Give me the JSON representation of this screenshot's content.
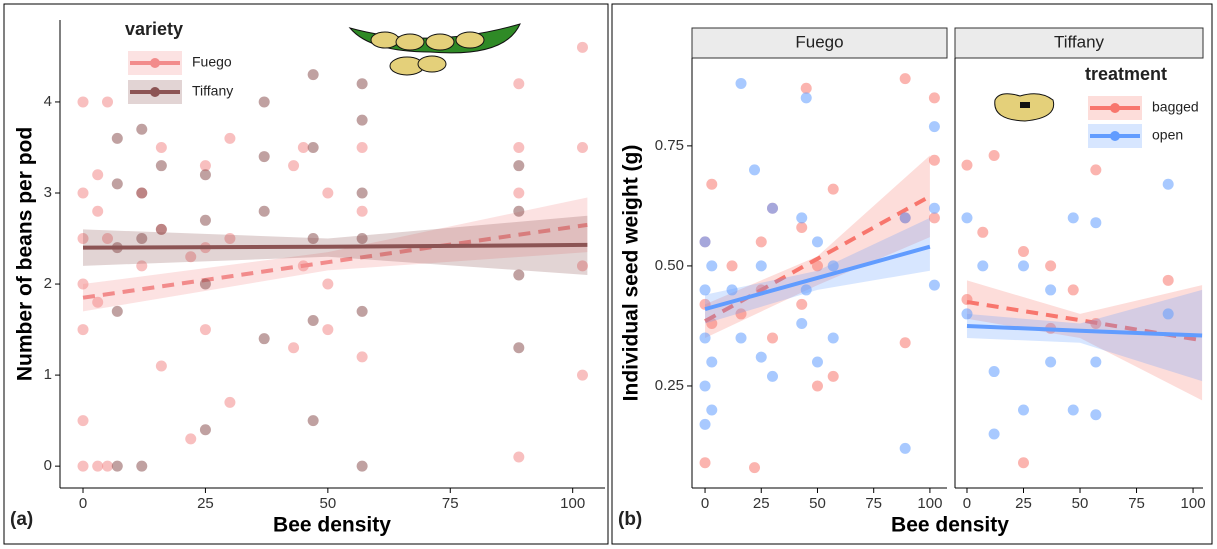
{
  "chart_data": [
    {
      "type": "scatter",
      "panel_label": "(a)",
      "xlabel": "Bee density",
      "ylabel": "Number of beans per pod",
      "legend_title": "variety",
      "xlim": [
        -4.7,
        106.6
      ],
      "ylim": [
        -0.24,
        4.9
      ],
      "xticks": [
        0,
        25,
        50,
        75,
        100
      ],
      "yticks": [
        0,
        1,
        2,
        3,
        4
      ],
      "series": [
        {
          "name": "Fuego",
          "color": "#f28b8b",
          "line_style": "dashed",
          "x": [
            0,
            0,
            0,
            0,
            0,
            0,
            0,
            3,
            3,
            3,
            3,
            5,
            5,
            5,
            12,
            12,
            16,
            16,
            16,
            22,
            22,
            25,
            25,
            25,
            30,
            30,
            30,
            43,
            43,
            45,
            45,
            50,
            50,
            50,
            57,
            57,
            57,
            89,
            89,
            89,
            89,
            102,
            102,
            102,
            102
          ],
          "values": [
            4,
            3,
            2.5,
            2,
            1.5,
            0.5,
            0,
            3.2,
            2.8,
            1.8,
            0,
            4,
            2.5,
            0,
            3,
            2.2,
            3.5,
            2.6,
            1.1,
            2.3,
            0.3,
            3.3,
            2.4,
            1.5,
            3.6,
            2.5,
            0.7,
            3.3,
            1.3,
            3.5,
            2.2,
            3,
            2,
            1.5,
            3.5,
            2.8,
            1.2,
            4.2,
            3.5,
            3,
            0.1,
            4.6,
            3.5,
            2.2,
            1
          ],
          "fit": {
            "x": [
              0,
              50,
              103
            ],
            "values": [
              1.85,
              2.24,
              2.65
            ],
            "lower": [
              1.7,
              2.15,
              2.35
            ],
            "upper": [
              2.0,
              2.35,
              2.95
            ]
          }
        },
        {
          "name": "Tiffany",
          "color": "#8c5454",
          "line_style": "solid",
          "x": [
            7,
            7,
            7,
            7,
            7,
            12,
            12,
            12,
            12,
            16,
            16,
            25,
            25,
            25,
            25,
            37,
            37,
            37,
            37,
            47,
            47,
            47,
            47,
            47,
            57,
            57,
            57,
            57,
            57,
            57,
            89,
            89,
            89,
            89
          ],
          "values": [
            3.6,
            3.1,
            2.4,
            1.7,
            0,
            3.7,
            3,
            2.5,
            0,
            3.3,
            2.6,
            3.2,
            2.7,
            2,
            0.4,
            4,
            3.4,
            2.8,
            1.4,
            4.3,
            3.5,
            2.5,
            1.6,
            0.5,
            4.2,
            3.8,
            3,
            2.5,
            1.7,
            0,
            3.3,
            2.8,
            2.1,
            1.3
          ],
          "fit": {
            "x": [
              0,
              50,
              103
            ],
            "values": [
              2.4,
              2.41,
              2.43
            ],
            "lower": [
              2.2,
              2.3,
              2.1
            ],
            "upper": [
              2.6,
              2.5,
              2.75
            ]
          }
        }
      ]
    },
    {
      "type": "scatter",
      "panel_label": "(b)",
      "facet": "Fuego",
      "xlabel": "Bee density",
      "ylabel": "Individual seed weight (g)",
      "xlim": [
        -5.8,
        107.6
      ],
      "ylim": [
        0.0375,
        0.933
      ],
      "xticks": [
        0,
        25,
        50,
        75,
        100
      ],
      "yticks": [
        {
          "value": 0.25,
          "label": "0.25"
        },
        {
          "value": 0.5,
          "label": "0.50"
        },
        {
          "value": 0.75,
          "label": "0.75"
        }
      ],
      "series": [
        {
          "name": "bagged",
          "color": "#f8766d",
          "line_style": "dashed",
          "x": [
            0,
            0,
            0,
            3,
            3,
            12,
            16,
            22,
            25,
            25,
            30,
            30,
            43,
            43,
            45,
            50,
            50,
            57,
            57,
            89,
            89,
            89,
            102,
            102,
            102
          ],
          "values": [
            0.55,
            0.42,
            0.09,
            0.67,
            0.38,
            0.5,
            0.4,
            0.08,
            0.55,
            0.45,
            0.62,
            0.35,
            0.58,
            0.42,
            0.87,
            0.5,
            0.25,
            0.66,
            0.27,
            0.89,
            0.6,
            0.34,
            0.85,
            0.72,
            0.6
          ],
          "fit": {
            "x": [
              0,
              50,
              100
            ],
            "values": [
              0.385,
              0.515,
              0.645
            ],
            "lower": [
              0.35,
              0.46,
              0.56
            ],
            "upper": [
              0.42,
              0.52,
              0.73
            ]
          }
        },
        {
          "name": "open",
          "color": "#619cff",
          "line_style": "solid",
          "x": [
            0,
            0,
            0,
            0,
            0,
            3,
            3,
            3,
            12,
            16,
            16,
            22,
            25,
            25,
            30,
            30,
            43,
            43,
            45,
            45,
            50,
            50,
            57,
            57,
            89,
            89,
            102,
            102,
            102
          ],
          "values": [
            0.55,
            0.45,
            0.35,
            0.25,
            0.17,
            0.5,
            0.3,
            0.2,
            0.45,
            0.88,
            0.35,
            0.7,
            0.5,
            0.31,
            0.62,
            0.27,
            0.6,
            0.38,
            0.85,
            0.45,
            0.55,
            0.3,
            0.5,
            0.35,
            0.6,
            0.12,
            0.79,
            0.62,
            0.46
          ],
          "fit": {
            "x": [
              0,
              50,
              100
            ],
            "values": [
              0.41,
              0.475,
              0.54
            ],
            "lower": [
              0.38,
              0.45,
              0.49
            ],
            "upper": [
              0.44,
              0.49,
              0.6
            ]
          }
        }
      ]
    },
    {
      "type": "scatter",
      "facet": "Tiffany",
      "legend_title": "treatment",
      "xlim": [
        -5.3,
        104.4
      ],
      "ylim": [
        0.0375,
        0.933
      ],
      "xticks": [
        0,
        25,
        50,
        75,
        100
      ],
      "series": [
        {
          "name": "bagged",
          "color": "#f8766d",
          "line_style": "dashed",
          "x": [
            0,
            0,
            7,
            12,
            25,
            25,
            37,
            37,
            47,
            57,
            57,
            89
          ],
          "values": [
            0.71,
            0.43,
            0.57,
            0.73,
            0.53,
            0.09,
            0.5,
            0.37,
            0.45,
            0.7,
            0.38,
            0.47
          ],
          "fit": {
            "x": [
              0,
              50,
              104
            ],
            "values": [
              0.425,
              0.387,
              0.345
            ],
            "lower": [
              0.39,
              0.35,
              0.22
            ],
            "upper": [
              0.47,
              0.4,
              0.46
            ]
          }
        },
        {
          "name": "open",
          "color": "#619cff",
          "line_style": "solid",
          "x": [
            0,
            0,
            7,
            12,
            12,
            25,
            25,
            37,
            37,
            47,
            47,
            57,
            57,
            57,
            89,
            89
          ],
          "values": [
            0.6,
            0.4,
            0.5,
            0.28,
            0.15,
            0.5,
            0.2,
            0.45,
            0.3,
            0.6,
            0.2,
            0.59,
            0.3,
            0.19,
            0.67,
            0.4
          ],
          "fit": {
            "x": [
              0,
              50,
              104
            ],
            "values": [
              0.375,
              0.365,
              0.355
            ],
            "lower": [
              0.35,
              0.34,
              0.26
            ],
            "upper": [
              0.4,
              0.38,
              0.45
            ]
          }
        }
      ]
    }
  ]
}
